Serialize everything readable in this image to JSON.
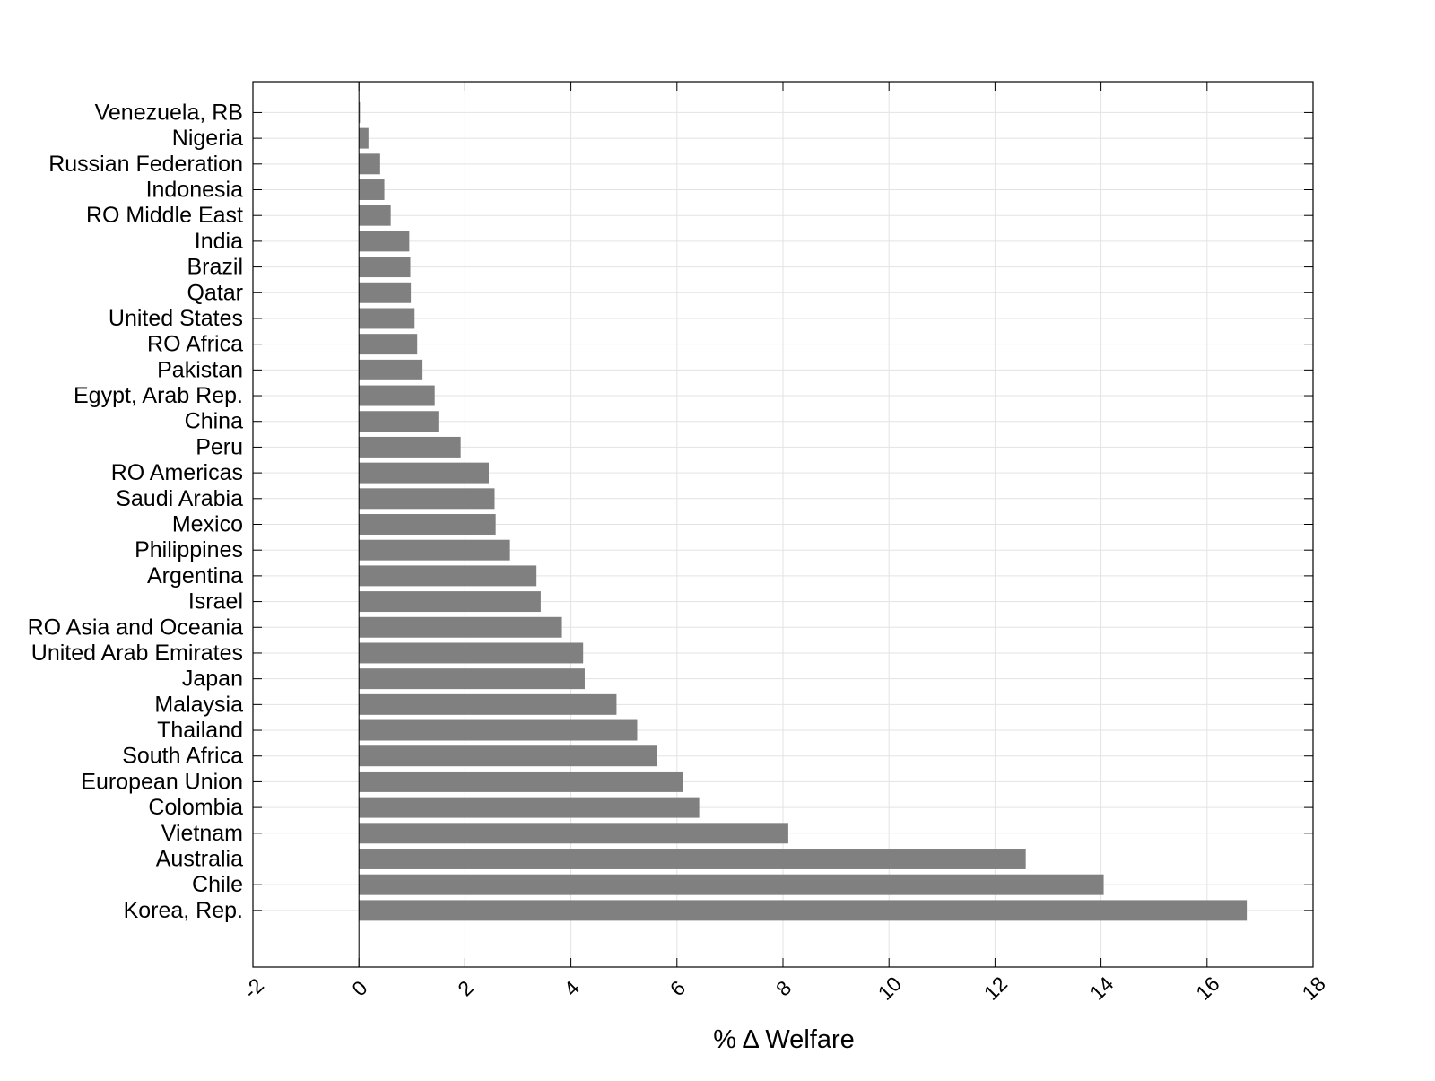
{
  "chart_data": {
    "type": "bar",
    "orientation": "horizontal",
    "title": "",
    "xlabel": "% Δ Welfare",
    "ylabel": "",
    "xlim": [
      -2,
      18
    ],
    "xticks": [
      -2,
      0,
      2,
      4,
      6,
      8,
      10,
      12,
      14,
      16,
      18
    ],
    "xtick_labels": [
      "-2",
      "0",
      "2",
      "4",
      "6",
      "8",
      "10",
      "12",
      "14",
      "16",
      "18"
    ],
    "grid": true,
    "bar_color": "#808080",
    "categories": [
      "Venezuela, RB",
      "Nigeria",
      "Russian Federation",
      "Indonesia",
      "RO Middle East",
      "India",
      "Brazil",
      "Qatar",
      "United States",
      "RO Africa",
      "Pakistan",
      "Egypt, Arab Rep.",
      "China",
      "Peru",
      "RO Americas",
      "Saudi Arabia",
      "Mexico",
      "Philippines",
      "Argentina",
      "Israel",
      "RO Asia and Oceania",
      "United Arab Emirates",
      "Japan",
      "Malaysia",
      "Thailand",
      "South Africa",
      "European Union",
      "Colombia",
      "Vietnam",
      "Australia",
      "Chile",
      "Korea, Rep."
    ],
    "values": [
      0.02,
      0.18,
      0.4,
      0.48,
      0.6,
      0.95,
      0.97,
      0.98,
      1.05,
      1.1,
      1.2,
      1.43,
      1.5,
      1.92,
      2.45,
      2.56,
      2.58,
      2.85,
      3.35,
      3.43,
      3.83,
      4.23,
      4.26,
      4.86,
      5.25,
      5.62,
      6.12,
      6.42,
      8.1,
      12.58,
      14.05,
      16.75
    ]
  }
}
